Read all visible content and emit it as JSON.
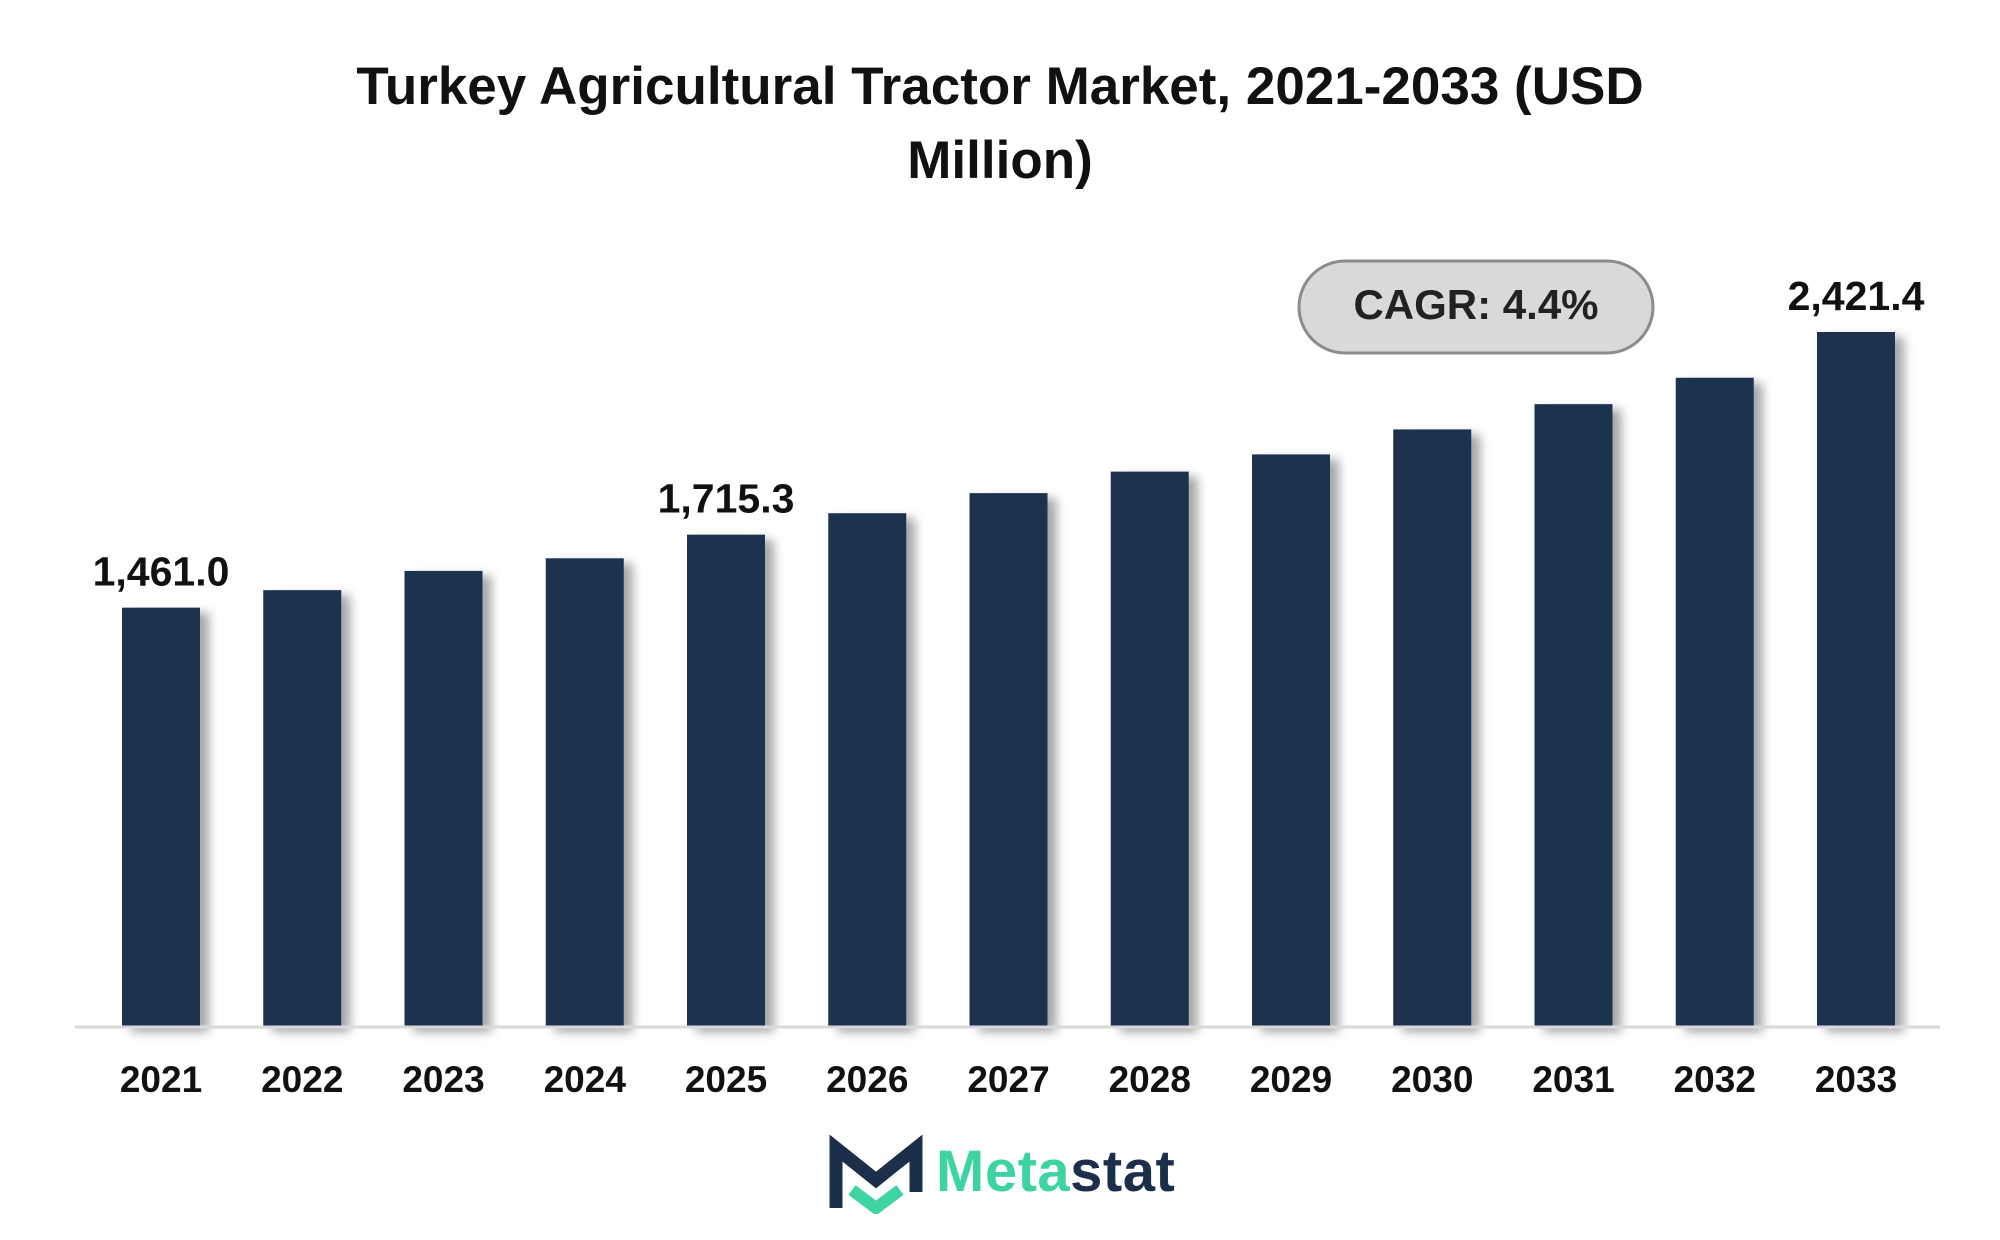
{
  "chart_data": {
    "type": "bar",
    "title": "Turkey Agricultural Tractor Market, 2021-2033 (USD Million)",
    "categories": [
      "2021",
      "2022",
      "2023",
      "2024",
      "2025",
      "2026",
      "2027",
      "2028",
      "2029",
      "2030",
      "2031",
      "2032",
      "2033"
    ],
    "values": [
      1461.0,
      1522.0,
      1589.0,
      1633.0,
      1715.3,
      1790.0,
      1860.0,
      1935.0,
      1995.0,
      2082.0,
      2170.0,
      2262.0,
      2421.4
    ],
    "data_labels": [
      {
        "category": "2021",
        "text": "1,461.0"
      },
      {
        "category": "2025",
        "text": "1,715.3"
      },
      {
        "category": "2033",
        "text": "2,421.4"
      }
    ],
    "annotation": "CAGR: 4.4%",
    "ylim": [
      0,
      2421.4
    ],
    "grid": false,
    "legend": "none",
    "colors": {
      "bar": "#1b3150",
      "baseline": "#d9d9d9",
      "annotation_fill": "#d9d9d9",
      "annotation_stroke": "#8c8c8c"
    }
  },
  "brand": {
    "name_part1": "Meta",
    "name_part2": "stat",
    "logo_icon": "metastat-m-logo-icon",
    "colors": {
      "primary": "#1b2f4b",
      "accent": "#3ed3a3"
    }
  }
}
